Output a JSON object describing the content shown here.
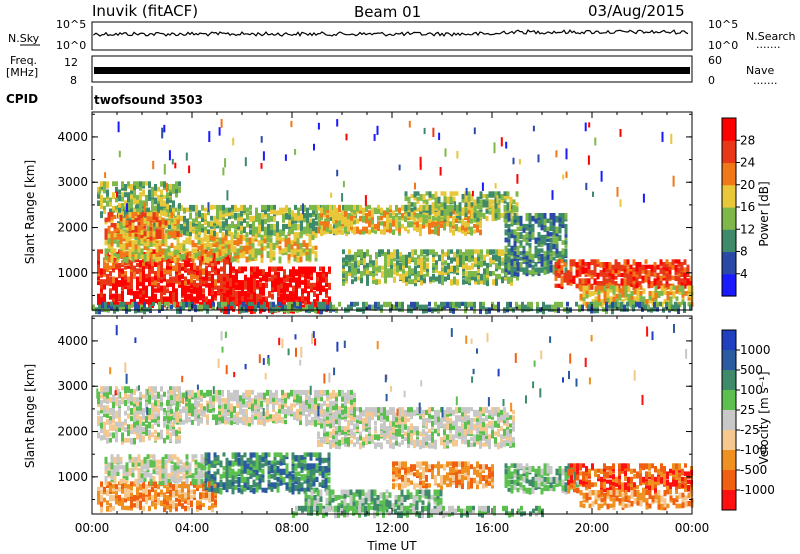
{
  "header": {
    "station": "Inuvik (fitACF)",
    "beam": "Beam 01",
    "date": "03/Aug/2015"
  },
  "top_panels": {
    "nsky_label": "N.Sky",
    "nsky_ticks": [
      "10^5",
      "10^0"
    ],
    "nsearch_label": "N.Search",
    "nsearch_ticks": [
      "10^5",
      "10^0"
    ],
    "freq_label": "Freq.",
    "freq_unit": "[MHz]",
    "freq_ticks": [
      "12",
      "8"
    ],
    "nave_label": "Nave",
    "nave_ticks": [
      "60",
      "0"
    ],
    "cpid_label": "CPID",
    "cpid_text": "twofsound 3503",
    "dots": "......."
  },
  "chart_data": [
    {
      "type": "heatmap",
      "name": "power",
      "xlabel": "",
      "ylabel": "Slant Range [km]",
      "y_ticks": [
        1000,
        2000,
        3000,
        4000
      ],
      "ylim": [
        180,
        4550
      ],
      "xlim": [
        0,
        24
      ],
      "colorbar": {
        "label": "Power [dB]",
        "ticks": [
          "4",
          "8",
          "12",
          "16",
          "20",
          "24",
          "28"
        ],
        "colors": [
          "#1a1aff",
          "#2b4aa8",
          "#3f8a6a",
          "#7fb84a",
          "#e8c83a",
          "#f07818",
          "#e83818",
          "#ff0000"
        ]
      },
      "regions": [
        {
          "t0": 0.2,
          "t1": 6.5,
          "r0": 300,
          "r1": 900,
          "level": 7
        },
        {
          "t0": 0.2,
          "t1": 5.5,
          "r0": 800,
          "r1": 1500,
          "level": 6
        },
        {
          "t0": 0.5,
          "t1": 9.0,
          "r0": 1300,
          "r1": 1900,
          "level": 4
        },
        {
          "t0": 1.0,
          "t1": 10.5,
          "r0": 1900,
          "r1": 2500,
          "level": 3
        },
        {
          "t0": 0.2,
          "t1": 3.5,
          "r0": 2300,
          "r1": 3000,
          "level": 3
        },
        {
          "t0": 5.0,
          "t1": 9.5,
          "r0": 180,
          "r1": 1100,
          "level": 7
        },
        {
          "t0": 9.0,
          "t1": 15.5,
          "r0": 1900,
          "r1": 2500,
          "level": 4
        },
        {
          "t0": 12.5,
          "t1": 17.0,
          "r0": 2200,
          "r1": 2800,
          "level": 3
        },
        {
          "t0": 10.0,
          "t1": 17.0,
          "r0": 800,
          "r1": 1500,
          "level": 3
        },
        {
          "t0": 16.5,
          "t1": 19.0,
          "r0": 1000,
          "r1": 2300,
          "level": 2
        },
        {
          "t0": 18.5,
          "t1": 24.0,
          "r0": 700,
          "r1": 1300,
          "level": 6
        },
        {
          "t0": 19.5,
          "t1": 24.0,
          "r0": 300,
          "r1": 700,
          "level": 4
        },
        {
          "t0": 0.0,
          "t1": 24.0,
          "r0": 180,
          "r1": 350,
          "level": 2
        },
        {
          "t0": 0.5,
          "t1": 3.5,
          "r0": 1800,
          "r1": 2300,
          "level": 5
        }
      ]
    },
    {
      "type": "heatmap",
      "name": "velocity",
      "xlabel": "Time UT",
      "ylabel": "Slant Range [km]",
      "x_ticks": [
        "00:00",
        "04:00",
        "08:00",
        "12:00",
        "16:00",
        "20:00",
        "00:00"
      ],
      "y_ticks": [
        1000,
        2000,
        3000,
        4000
      ],
      "ylim": [
        180,
        4550
      ],
      "xlim": [
        0,
        24
      ],
      "colorbar": {
        "label": "Velocity [m s⁻¹]",
        "ticks": [
          "1000",
          "500",
          "100",
          "25",
          "-25",
          "-100",
          "-500",
          "-1000"
        ],
        "colors": [
          "#2040c0",
          "#2a5aa0",
          "#3f8a6a",
          "#5cc050",
          "#c8c8c8",
          "#f5c890",
          "#f09020",
          "#f06010",
          "#ff1010"
        ]
      },
      "regions": [
        {
          "t0": 0.2,
          "t1": 3.5,
          "r0": 1800,
          "r1": 3000,
          "level": 4
        },
        {
          "t0": 3.0,
          "t1": 10.5,
          "r0": 2200,
          "r1": 2900,
          "level": 4
        },
        {
          "t0": 0.2,
          "t1": 5.0,
          "r0": 300,
          "r1": 900,
          "level": 6
        },
        {
          "t0": 0.5,
          "t1": 4.5,
          "r0": 900,
          "r1": 1500,
          "level": 4
        },
        {
          "t0": 4.5,
          "t1": 9.5,
          "r0": 700,
          "r1": 1500,
          "level": 2
        },
        {
          "t0": 9.0,
          "t1": 16.8,
          "r0": 1700,
          "r1": 2500,
          "level": 4
        },
        {
          "t0": 8.5,
          "t1": 14.0,
          "r0": 300,
          "r1": 700,
          "level": 3
        },
        {
          "t0": 12.0,
          "t1": 16.0,
          "r0": 800,
          "r1": 1300,
          "level": 6
        },
        {
          "t0": 16.5,
          "t1": 19.5,
          "r0": 700,
          "r1": 1300,
          "level": 3
        },
        {
          "t0": 19.0,
          "t1": 24.0,
          "r0": 700,
          "r1": 1300,
          "level": 7
        },
        {
          "t0": 19.5,
          "t1": 24.0,
          "r0": 350,
          "r1": 700,
          "level": 6
        },
        {
          "t0": 8.0,
          "t1": 18.0,
          "r0": 180,
          "r1": 350,
          "level": 3
        }
      ]
    }
  ]
}
